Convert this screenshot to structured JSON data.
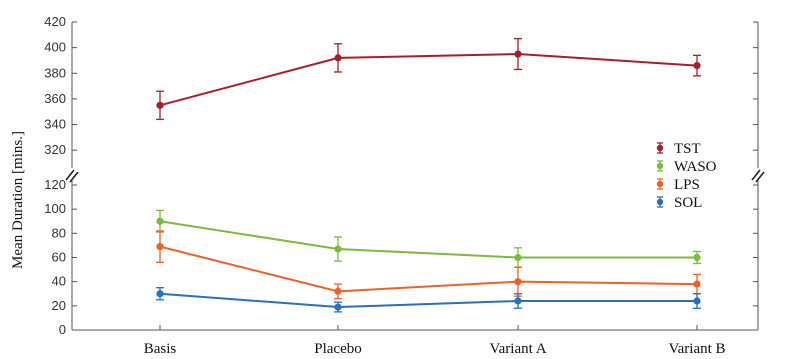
{
  "chart_data": {
    "type": "line",
    "ylabel": "Mean Duration [mins.]",
    "categories": [
      "Basis",
      "Placebo",
      "Variant A",
      "Variant B"
    ],
    "axis_break": true,
    "y_upper_ticks": [
      "320",
      "340",
      "360",
      "380",
      "400",
      "420"
    ],
    "y_lower_ticks": [
      "0",
      "20",
      "40",
      "60",
      "80",
      "100",
      "120"
    ],
    "ylim_upper": [
      310,
      420
    ],
    "ylim_lower": [
      0,
      120
    ],
    "legend_position": "right",
    "series": [
      {
        "name": "TST",
        "color": "#a3202a",
        "segment": "upper",
        "values": [
          355,
          392,
          395,
          386
        ],
        "errors": [
          11,
          11,
          12,
          8
        ]
      },
      {
        "name": "WASO",
        "color": "#7dba3f",
        "segment": "lower",
        "values": [
          90,
          67,
          60,
          60
        ],
        "errors": [
          9,
          10,
          8,
          5
        ]
      },
      {
        "name": "LPS",
        "color": "#e8622a",
        "segment": "lower",
        "values": [
          69,
          32,
          40,
          38
        ],
        "errors": [
          13,
          6,
          12,
          8
        ]
      },
      {
        "name": "SOL",
        "color": "#2a6fba",
        "segment": "lower",
        "values": [
          30,
          19,
          24,
          24
        ],
        "errors": [
          5,
          4,
          6,
          6
        ]
      }
    ]
  }
}
